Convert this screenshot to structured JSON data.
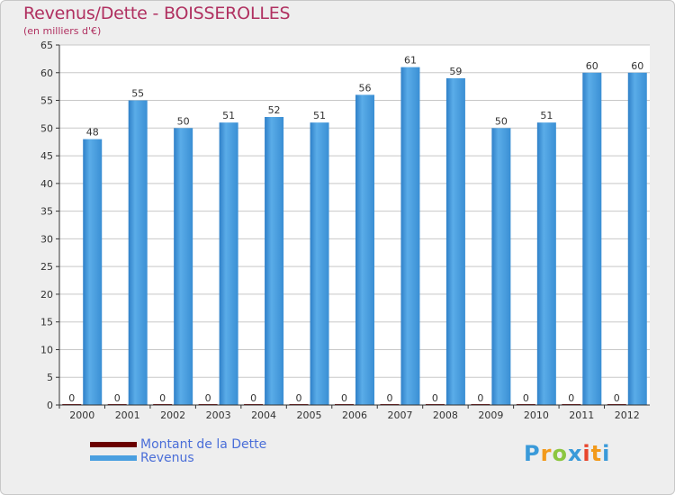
{
  "title": "Revenus/Dette - BOISSEROLLES",
  "subtitle": "(en milliers d'€)",
  "logo_text": "Proxiti",
  "colors": {
    "revenus": "#4a9fe0",
    "dette": "#7a0a0a",
    "title": "#b03060",
    "legend_text": "#4a6ed8"
  },
  "legend": {
    "items": [
      {
        "label": "Montant de la Dette",
        "color": "#6b0000"
      },
      {
        "label": "Revenus",
        "color": "#4a9fe0"
      }
    ]
  },
  "chart_data": {
    "type": "bar",
    "title": "Revenus/Dette - BOISSEROLLES",
    "ylabel": "(en milliers d'€)",
    "xlabel": "",
    "ylim": [
      0,
      65
    ],
    "yticks": [
      0,
      5,
      10,
      15,
      20,
      25,
      30,
      35,
      40,
      45,
      50,
      55,
      60,
      65
    ],
    "grid": true,
    "categories": [
      "2000",
      "2001",
      "2002",
      "2003",
      "2004",
      "2005",
      "2006",
      "2007",
      "2008",
      "2009",
      "2010",
      "2011",
      "2012"
    ],
    "series": [
      {
        "name": "Montant de la Dette",
        "values": [
          0,
          0,
          0,
          0,
          0,
          0,
          0,
          0,
          0,
          0,
          0,
          0,
          0
        ]
      },
      {
        "name": "Revenus",
        "values": [
          48,
          55,
          50,
          51,
          52,
          51,
          56,
          61,
          59,
          50,
          51,
          60,
          60
        ]
      }
    ]
  }
}
